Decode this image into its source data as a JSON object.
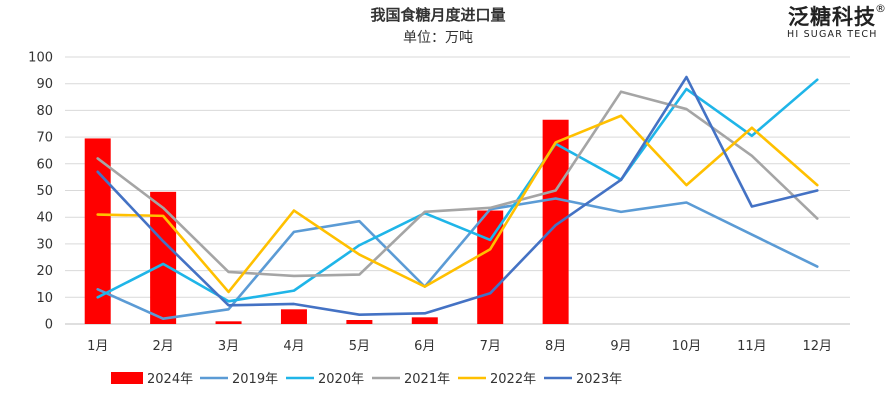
{
  "brand": {
    "name": "泛糖科技",
    "sub": "HI SUGAR TECH",
    "reg": "®"
  },
  "chart_data": {
    "type": "bar+line",
    "title": "我国食糖月度进口量",
    "subtitle": "单位：万吨",
    "categories": [
      "1月",
      "2月",
      "3月",
      "4月",
      "5月",
      "6月",
      "7月",
      "8月",
      "9月",
      "10月",
      "11月",
      "12月"
    ],
    "yticks": [
      "0",
      "10",
      "20",
      "30",
      "40",
      "50",
      "60",
      "70",
      "80",
      "90",
      "100"
    ],
    "ylim": [
      0,
      100
    ],
    "grid": true,
    "legend_position": "bottom",
    "bar_series": {
      "name": "2024年",
      "color": "#ff0000",
      "values": [
        69.5,
        49.5,
        1,
        5.5,
        1.5,
        2.5,
        42.5,
        76.5,
        null,
        null,
        null,
        null
      ]
    },
    "line_series": [
      {
        "name": "2019年",
        "color": "#5b9bd5",
        "values": [
          13,
          2,
          5.5,
          34.5,
          38.5,
          14,
          43,
          47,
          42,
          45.5,
          33.5,
          21.5
        ]
      },
      {
        "name": "2020年",
        "color": "#1fb5e8",
        "values": [
          10,
          22.5,
          8.5,
          12.5,
          29.5,
          41.5,
          31.5,
          67.5,
          54,
          88,
          70.5,
          91.5
        ]
      },
      {
        "name": "2021年",
        "color": "#a5a5a5",
        "values": [
          62,
          43.5,
          19.5,
          18,
          18.5,
          42,
          43.5,
          50,
          87,
          80.5,
          63,
          39.5
        ]
      },
      {
        "name": "2022年",
        "color": "#ffc000",
        "values": [
          41,
          40.5,
          12,
          42.5,
          26,
          14,
          28,
          68,
          78,
          52,
          73.5,
          52
        ]
      },
      {
        "name": "2023年",
        "color": "#4472c4",
        "values": [
          57,
          31,
          7,
          7.5,
          3.5,
          4,
          11.5,
          37,
          54,
          92.5,
          44,
          50
        ]
      }
    ]
  }
}
